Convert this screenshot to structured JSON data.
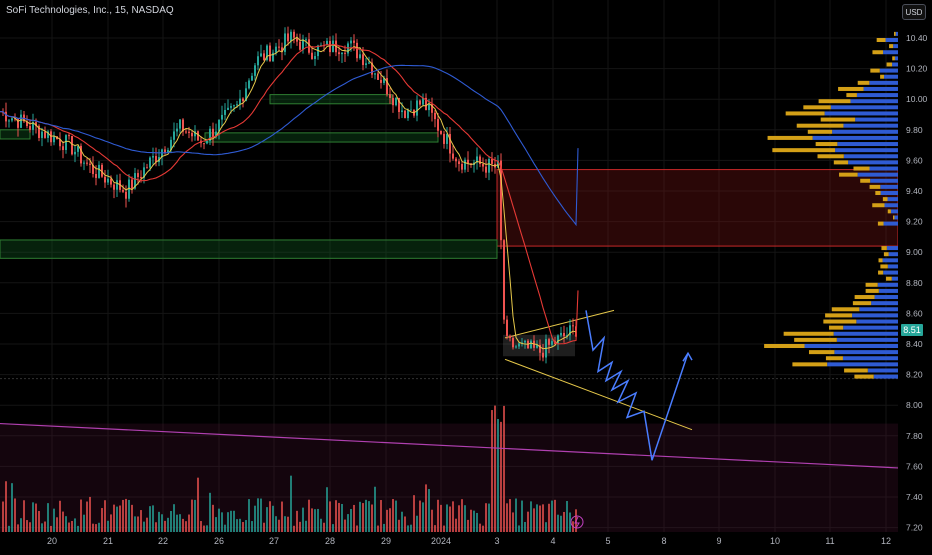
{
  "header": {
    "symbol_line": "SoFi Technologies, Inc., 15, NASDAQ",
    "currency_button": "USD"
  },
  "price_axis": {
    "ticks": [
      "10.40",
      "10.20",
      "10.00",
      "9.80",
      "9.60",
      "9.40",
      "9.20",
      "9.00",
      "8.80",
      "8.60",
      "8.40",
      "8.20",
      "8.00",
      "7.80",
      "7.60",
      "7.40",
      "7.20"
    ],
    "last_price_label": "8.51"
  },
  "time_axis": {
    "ticks": [
      "20",
      "21",
      "22",
      "26",
      "27",
      "28",
      "29",
      "2024",
      "3",
      "4",
      "5",
      "8",
      "9",
      "10",
      "11",
      "12"
    ]
  },
  "colors": {
    "up": "#26a69a",
    "down": "#ef5350",
    "ma_fast": "#e6c84a",
    "ma_mid": "#e53935",
    "ma_slow": "#2f5bd3",
    "projection": "#4a7dff",
    "volume_profile_up": "#2f5bd3",
    "volume_profile_down": "#d4a017"
  },
  "chart_data": {
    "type": "candlestick",
    "ylim": [
      7.2,
      10.45
    ],
    "x_ticks": [
      "20",
      "21",
      "22",
      "26",
      "27",
      "28",
      "29",
      "2024",
      "3",
      "4",
      "5",
      "8",
      "9",
      "10",
      "11",
      "12"
    ],
    "y_ticks": [
      10.4,
      10.2,
      10.0,
      9.8,
      9.6,
      9.4,
      9.2,
      9.0,
      8.8,
      8.6,
      8.4,
      8.2,
      8.0,
      7.8,
      7.6,
      7.4,
      7.2
    ],
    "price_path": [
      {
        "x": "20",
        "y": 9.92
      },
      {
        "x": "20",
        "y": 9.7
      },
      {
        "x": "21",
        "y": 9.55
      },
      {
        "x": "21",
        "y": 9.4
      },
      {
        "x": "22",
        "y": 9.55
      },
      {
        "x": "22",
        "y": 9.82
      },
      {
        "x": "26",
        "y": 9.72
      },
      {
        "x": "26",
        "y": 9.95
      },
      {
        "x": "27",
        "y": 10.25
      },
      {
        "x": "27",
        "y": 10.4
      },
      {
        "x": "28",
        "y": 10.32
      },
      {
        "x": "28",
        "y": 10.36
      },
      {
        "x": "29",
        "y": 10.25
      },
      {
        "x": "29",
        "y": 9.92
      },
      {
        "x": "2024",
        "y": 9.98
      },
      {
        "x": "2024",
        "y": 9.6
      },
      {
        "x": "3",
        "y": 9.55
      },
      {
        "x": "3",
        "y": 8.4
      },
      {
        "x": "4",
        "y": 8.35
      },
      {
        "x": "4",
        "y": 8.51
      }
    ],
    "last_price": 8.51,
    "supply_zone": [
      9.04,
      9.54
    ],
    "demand_zone": [
      8.96,
      9.08
    ],
    "projected_path": [
      {
        "x": "4",
        "y": 8.62
      },
      {
        "x": "4",
        "y": 8.36
      },
      {
        "x": "5",
        "y": 8.14
      },
      {
        "x": "5",
        "y": 7.98
      },
      {
        "x": "5",
        "y": 7.84
      },
      {
        "x": "8",
        "y": 7.64
      },
      {
        "x": "9",
        "y": 8.34
      }
    ]
  }
}
